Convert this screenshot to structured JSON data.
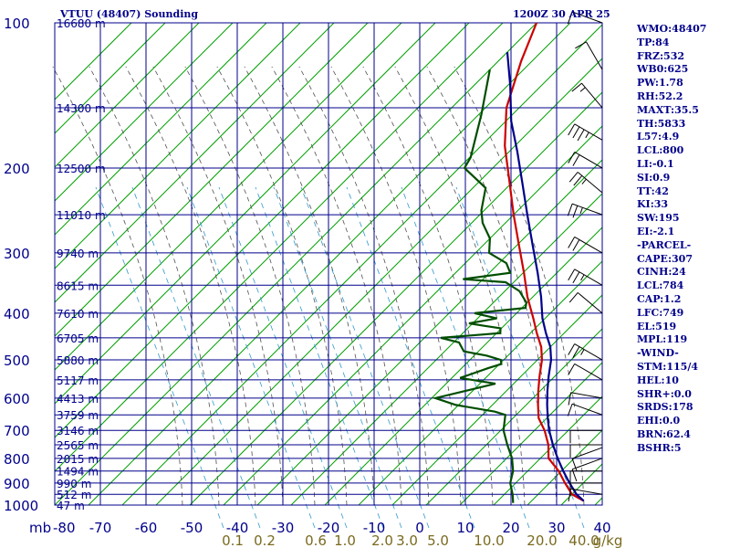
{
  "header": {
    "station": "VTUU (48407) Sounding",
    "time": "1200Z 30 APR 25"
  },
  "stats": [
    "WMO:48407",
    "TP:84",
    "FRZ:532",
    "WB0:625",
    "PW:1.78",
    "RH:52.2",
    "MAXT:35.5",
    "TH:5833",
    "L57:4.9",
    "LCL:800",
    "LI:-0.1",
    "SI:0.9",
    "TT:42",
    "KI:33",
    "SW:195",
    "EI:-2.1",
    "-PARCEL-",
    "CAPE:307",
    "CINH:24",
    "LCL:784",
    "CAP:1.2",
    "LFC:749",
    "EL:519",
    "MPL:119",
    "-WIND-",
    "STM:115/4",
    "HEL:10",
    "SHR+:0.0",
    "SRDS:178",
    "EHI:0.0",
    "BRN:62.4",
    "BSHR:5"
  ],
  "colors": {
    "grid": "#00008b",
    "isotherm": "#00a000",
    "dry_adiabat": "#505050",
    "mixing_ratio": "#3399cc",
    "temperature": "#cc0000",
    "parcel": "#00008b",
    "dewpoint": "#004d00",
    "wind_barb": "#000000"
  },
  "chart_data": {
    "type": "line",
    "title": "VTUU (48407) Sounding",
    "x_axis": {
      "label": "",
      "min": -80,
      "max": 40,
      "ticks": [
        "-80",
        "-70",
        "-60",
        "-50",
        "-40",
        "-30",
        "-20",
        "-10",
        "0",
        "10",
        "20",
        "30",
        "40"
      ]
    },
    "y_axis": {
      "label": "mb",
      "scale": "log",
      "min": 100,
      "max": 1000,
      "ticks": [
        "100",
        "200",
        "300",
        "400",
        "500",
        "600",
        "700",
        "800",
        "900",
        "1000"
      ]
    },
    "height_labels": [
      {
        "p": 100,
        "text": "16680 m"
      },
      {
        "p": 150,
        "text": "14300 m"
      },
      {
        "p": 200,
        "text": "12500 m"
      },
      {
        "p": 250,
        "text": "11010 m"
      },
      {
        "p": 300,
        "text": "9740 m"
      },
      {
        "p": 350,
        "text": "8615 m"
      },
      {
        "p": 400,
        "text": "7610 m"
      },
      {
        "p": 450,
        "text": "6705 m"
      },
      {
        "p": 500,
        "text": "5880 m"
      },
      {
        "p": 550,
        "text": "5117 m"
      },
      {
        "p": 600,
        "text": "4413 m"
      },
      {
        "p": 650,
        "text": "3759 m"
      },
      {
        "p": 700,
        "text": "3146 m"
      },
      {
        "p": 750,
        "text": "2565 m"
      },
      {
        "p": 800,
        "text": "2015 m"
      },
      {
        "p": 850,
        "text": "1494 m"
      },
      {
        "p": 900,
        "text": "990 m"
      },
      {
        "p": 950,
        "text": "512 m"
      },
      {
        "p": 1000,
        "text": "47 m"
      }
    ],
    "mixing_ratio_labels": [
      "0.1",
      "0.2",
      "0.6",
      "1.0",
      "2.0",
      "3.0",
      "5.0",
      "10.0",
      "20.0",
      "40.0",
      "g/kg"
    ],
    "series": [
      {
        "key": "temperature",
        "points": [
          [
            -80,
            100
          ],
          [
            -75,
            120
          ],
          [
            -68,
            150
          ],
          [
            -60,
            180
          ],
          [
            -52,
            210
          ],
          [
            -43,
            250
          ],
          [
            -35,
            290
          ],
          [
            -28,
            330
          ],
          [
            -22,
            370
          ],
          [
            -16,
            410
          ],
          [
            -12,
            440
          ],
          [
            -8,
            470
          ],
          [
            -5,
            500
          ],
          [
            -2,
            540
          ],
          [
            1,
            580
          ],
          [
            4,
            620
          ],
          [
            7,
            660
          ],
          [
            11,
            700
          ],
          [
            15,
            750
          ],
          [
            18,
            800
          ],
          [
            23,
            850
          ],
          [
            27,
            900
          ],
          [
            31,
            950
          ],
          [
            35,
            980
          ]
        ]
      },
      {
        "key": "parcel",
        "points": [
          [
            -80,
            115
          ],
          [
            -72,
            135
          ],
          [
            -64,
            160
          ],
          [
            -56,
            185
          ],
          [
            -48,
            215
          ],
          [
            -40,
            250
          ],
          [
            -32,
            290
          ],
          [
            -25,
            330
          ],
          [
            -19,
            370
          ],
          [
            -14,
            410
          ],
          [
            -10,
            440
          ],
          [
            -6,
            470
          ],
          [
            -3,
            500
          ],
          [
            0,
            540
          ],
          [
            3,
            580
          ],
          [
            6,
            620
          ],
          [
            9,
            660
          ],
          [
            12,
            700
          ],
          [
            16,
            750
          ],
          [
            20,
            800
          ],
          [
            24,
            850
          ],
          [
            28,
            900
          ],
          [
            32,
            950
          ],
          [
            35,
            980
          ]
        ]
      },
      {
        "key": "dewpoint",
        "points": [
          [
            -80,
            125
          ],
          [
            -72,
            155
          ],
          [
            -65,
            190
          ],
          [
            -64,
            200
          ],
          [
            -55,
            220
          ],
          [
            -51,
            245
          ],
          [
            -48,
            260
          ],
          [
            -43,
            280
          ],
          [
            -40,
            300
          ],
          [
            -34,
            315
          ],
          [
            -31,
            330
          ],
          [
            -40,
            340
          ],
          [
            -30,
            345
          ],
          [
            -25,
            360
          ],
          [
            -22,
            375
          ],
          [
            -21,
            380
          ],
          [
            -20,
            390
          ],
          [
            -30,
            400
          ],
          [
            -24,
            410
          ],
          [
            -29,
            420
          ],
          [
            -25,
            425
          ],
          [
            -21,
            430
          ],
          [
            -20,
            440
          ],
          [
            -32,
            450
          ],
          [
            -27,
            460
          ],
          [
            -24,
            480
          ],
          [
            -18,
            490
          ],
          [
            -14,
            500
          ],
          [
            -13,
            510
          ],
          [
            -15,
            520
          ],
          [
            -19,
            545
          ],
          [
            -10,
            560
          ],
          [
            -20,
            600
          ],
          [
            -14,
            620
          ],
          [
            -4,
            640
          ],
          [
            -1,
            650
          ],
          [
            2,
            700
          ],
          [
            6,
            750
          ],
          [
            10,
            800
          ],
          [
            13,
            850
          ],
          [
            15,
            900
          ],
          [
            18,
            950
          ],
          [
            20,
            990
          ]
        ]
      }
    ],
    "wind_barbs": [
      {
        "p": 100,
        "dir": 290,
        "spd": 10
      },
      {
        "p": 125,
        "dir": 330,
        "spd": 10
      },
      {
        "p": 150,
        "dir": 320,
        "spd": 5
      },
      {
        "p": 175,
        "dir": 300,
        "spd": 25
      },
      {
        "p": 200,
        "dir": 300,
        "spd": 20
      },
      {
        "p": 225,
        "dir": 310,
        "spd": 15
      },
      {
        "p": 250,
        "dir": 290,
        "spd": 15
      },
      {
        "p": 300,
        "dir": 300,
        "spd": 20
      },
      {
        "p": 350,
        "dir": 300,
        "spd": 15
      },
      {
        "p": 400,
        "dir": 310,
        "spd": 10
      },
      {
        "p": 500,
        "dir": 300,
        "spd": 15
      },
      {
        "p": 550,
        "dir": 300,
        "spd": 10
      },
      {
        "p": 600,
        "dir": 280,
        "spd": 10
      },
      {
        "p": 650,
        "dir": 290,
        "spd": 10
      },
      {
        "p": 700,
        "dir": 270,
        "spd": 10
      },
      {
        "p": 750,
        "dir": 270,
        "spd": 10
      },
      {
        "p": 760,
        "dir": 250,
        "spd": 10
      },
      {
        "p": 800,
        "dir": 250,
        "spd": 10
      },
      {
        "p": 850,
        "dir": 270,
        "spd": 10
      },
      {
        "p": 900,
        "dir": 270,
        "spd": 10
      },
      {
        "p": 950,
        "dir": 280,
        "spd": 10
      }
    ]
  }
}
